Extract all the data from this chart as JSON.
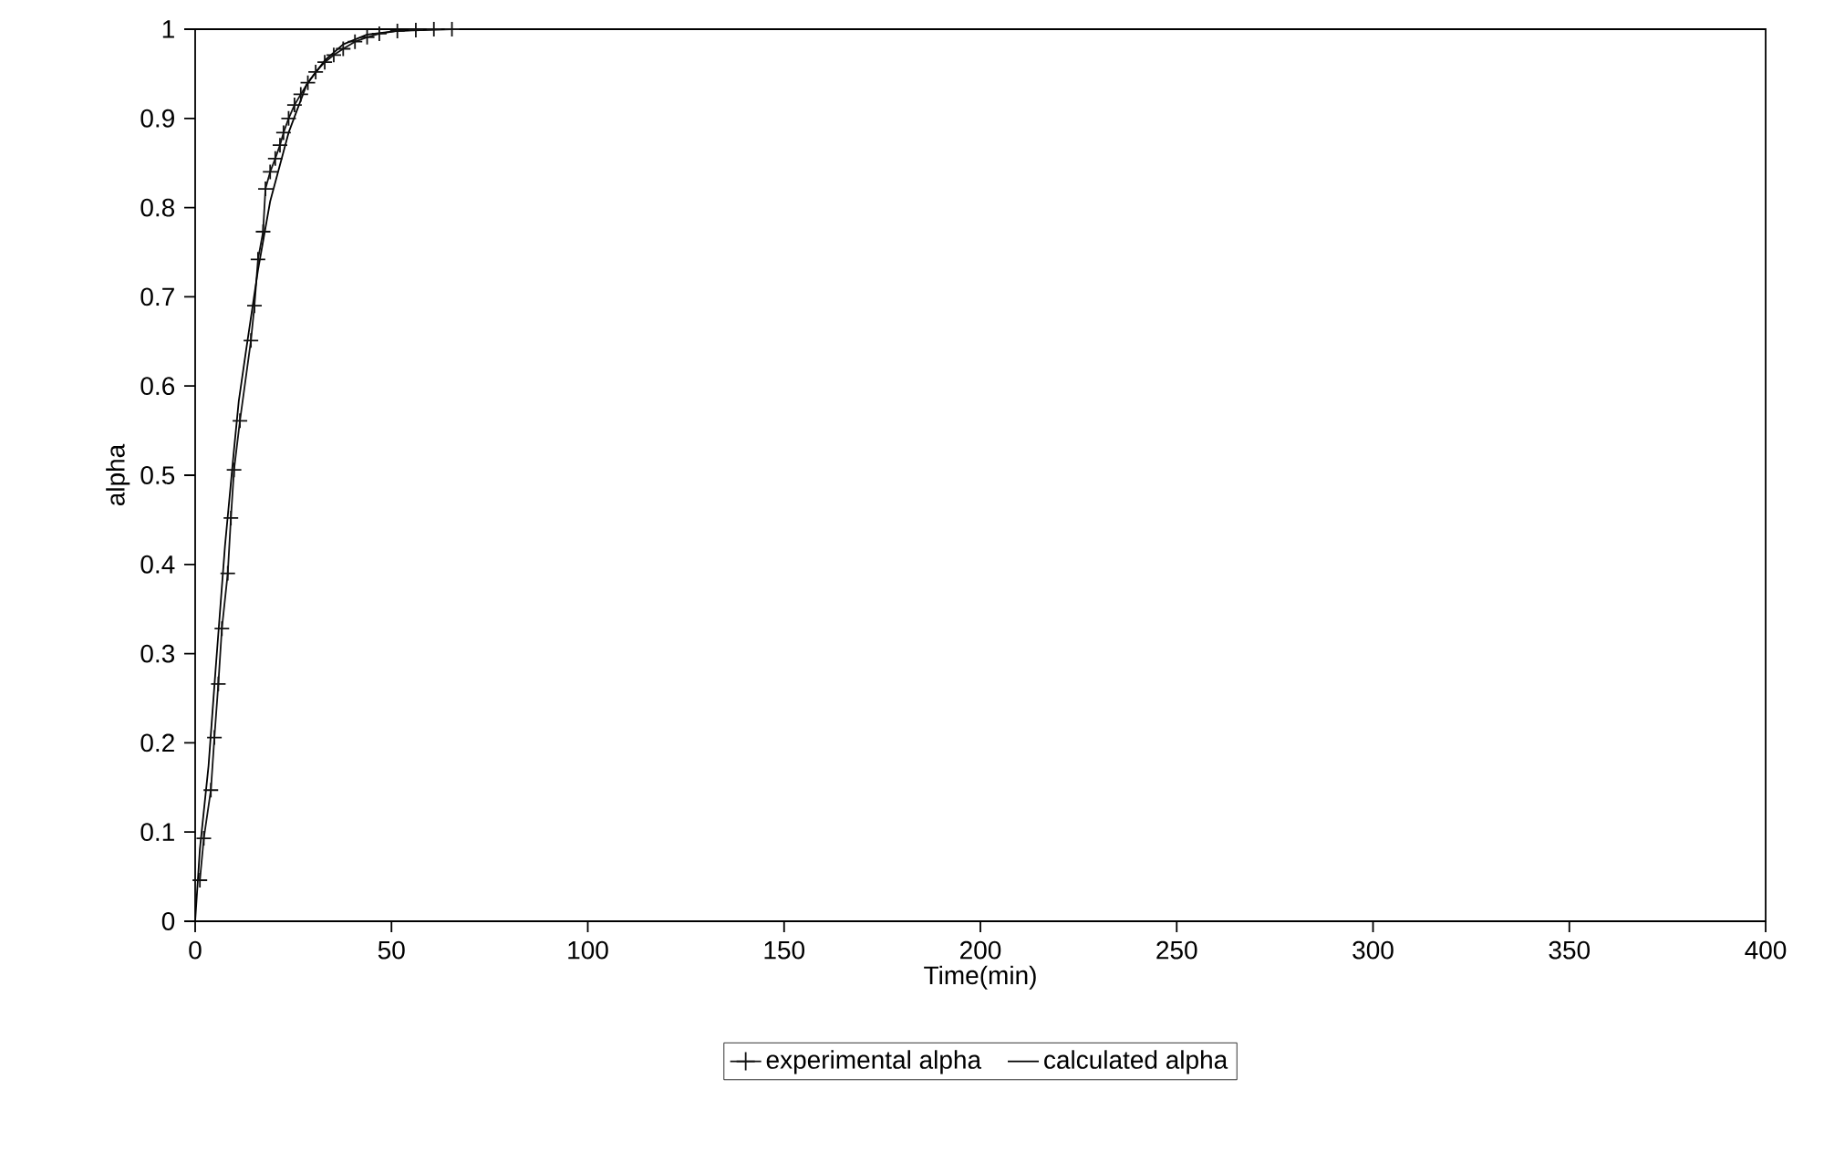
{
  "chart_data": {
    "type": "line",
    "xlabel": "Time(min)",
    "ylabel": "alpha",
    "xlim": [
      0,
      400
    ],
    "xticks": [
      0,
      50,
      100,
      150,
      200,
      250,
      300,
      350,
      400
    ],
    "ylim": [
      0,
      1
    ],
    "yticks": [
      0,
      0.1,
      0.2,
      0.3,
      0.4,
      0.5,
      0.6,
      0.7,
      0.8,
      0.9,
      1
    ],
    "grid": false,
    "legend": "bottom",
    "line_style": "solid",
    "series": [
      {
        "name": "experimental alpha",
        "color": "#111111",
        "marker": "cross",
        "x": [
          1.2,
          2.2,
          4.0,
          4.9,
          5.9,
          6.8,
          8.3,
          9.1,
          9.9,
          11.4,
          14.2,
          15.1,
          16.0,
          17.3,
          17.9,
          19.1,
          20.4,
          21.6,
          22.5,
          23.8,
          25.3,
          26.9,
          28.7,
          30.7,
          33.0,
          35.3,
          37.7,
          40.7,
          43.8,
          46.9,
          51.5,
          56.2,
          60.8,
          65.4
        ],
        "values": [
          0.046,
          0.093,
          0.147,
          0.206,
          0.266,
          0.328,
          0.39,
          0.452,
          0.506,
          0.561,
          0.651,
          0.69,
          0.742,
          0.773,
          0.821,
          0.84,
          0.855,
          0.87,
          0.884,
          0.9,
          0.915,
          0.927,
          0.94,
          0.952,
          0.963,
          0.971,
          0.978,
          0.986,
          0.991,
          0.995,
          0.998,
          0.999,
          1.0,
          1.0
        ]
      },
      {
        "name": "calculated alpha",
        "color": "#000000",
        "marker": "none",
        "x": [
          0,
          1.2,
          3.4,
          5.2,
          7.6,
          9.9,
          11.1,
          13.0,
          16.0,
          19.1,
          23.8,
          28.4,
          33.0,
          37.7,
          43.8,
          51.5,
          65.4
        ],
        "values": [
          0,
          0.081,
          0.174,
          0.282,
          0.421,
          0.529,
          0.583,
          0.641,
          0.73,
          0.807,
          0.884,
          0.938,
          0.965,
          0.983,
          0.994,
          0.998,
          1.0
        ]
      }
    ]
  }
}
